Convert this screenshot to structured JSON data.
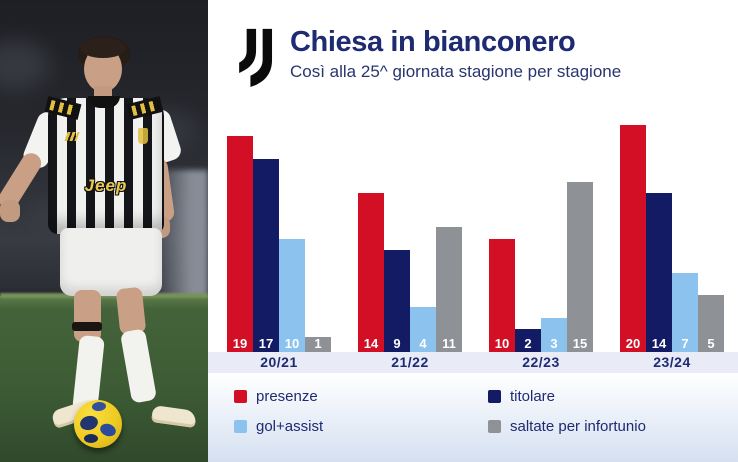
{
  "header": {
    "title": "Chiesa in bianconero",
    "subtitle": "Così alla 25^ giornata stagione per stagione",
    "logo": "juventus-logo"
  },
  "photo": {
    "description": "Juventus player in black-and-white striped shirt dribbling a yellow ball on the pitch",
    "shirt_sponsor": "Jeep"
  },
  "chart_data": {
    "type": "bar",
    "categories": [
      "20/21",
      "21/22",
      "22/23",
      "23/24"
    ],
    "series": [
      {
        "name": "presenze",
        "color": "#d20f24",
        "values": [
          19,
          14,
          10,
          20
        ]
      },
      {
        "name": "titolare",
        "color": "#121b64",
        "values": [
          17,
          9,
          2,
          14
        ]
      },
      {
        "name": "gol+assist",
        "color": "#8cc3ee",
        "values": [
          10,
          4,
          3,
          7
        ]
      },
      {
        "name": "saltate per infortunio",
        "color": "#8e9196",
        "values": [
          1,
          11,
          15,
          5
        ]
      }
    ],
    "title": "Chiesa in bianconero",
    "subtitle": "Così alla 25^ giornata stagione per stagione",
    "xlabel": "",
    "ylabel": "",
    "ylim": [
      0,
      20
    ],
    "grid": false,
    "value_labels": "inside bar bottom, white bold",
    "legend_position": "bottom, two columns"
  },
  "colors": {
    "title_text": "#1e2a72",
    "axis_strip_bg": "#e9ebf7",
    "legend_band_bottom": "#d5e0f0",
    "panel_bg": "#ffffff"
  }
}
